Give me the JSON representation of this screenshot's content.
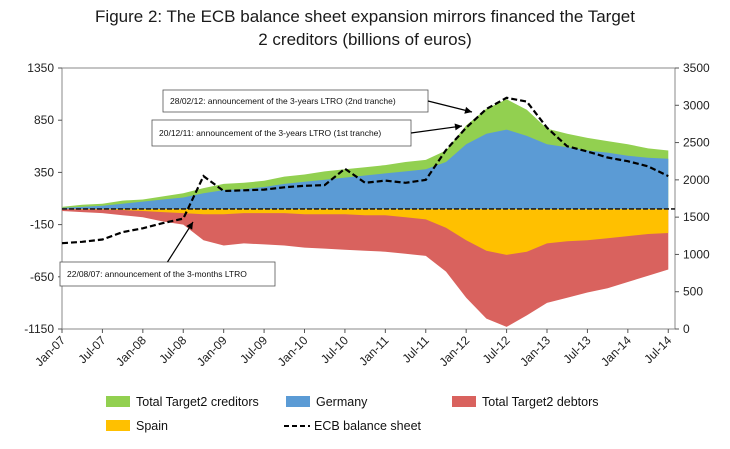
{
  "title_line1": "Figure 2: The ECB balance sheet expansion mirrors financed the Target",
  "title_line2": "2 creditors (billions of euros)",
  "chart_data": {
    "type": "area",
    "x": [
      "2007-01",
      "2007-04",
      "2007-07",
      "2007-10",
      "2008-01",
      "2008-04",
      "2008-07",
      "2008-10",
      "2009-01",
      "2009-04",
      "2009-07",
      "2009-10",
      "2010-01",
      "2010-04",
      "2010-07",
      "2010-10",
      "2011-01",
      "2011-04",
      "2011-07",
      "2011-10",
      "2012-01",
      "2012-04",
      "2012-07",
      "2012-10",
      "2013-01",
      "2013-04",
      "2013-07",
      "2013-10",
      "2014-01",
      "2014-04",
      "2014-07"
    ],
    "x_tick_labels": [
      "Jan-07",
      "Jul-07",
      "Jan-08",
      "Jul-08",
      "Jan-09",
      "Jul-09",
      "Jan-10",
      "Jul-10",
      "Jan-11",
      "Jul-11",
      "Jan-12",
      "Jul-12",
      "Jan-13",
      "Jul-13",
      "Jan-14",
      "Jul-14"
    ],
    "y_left": {
      "range": [
        -1150,
        1350
      ],
      "ticks": [
        1350,
        850,
        350,
        -150,
        -650,
        -1150
      ]
    },
    "y_right": {
      "range": [
        0,
        3500
      ],
      "ticks": [
        3500,
        3000,
        2500,
        2000,
        1500,
        1000,
        500,
        0
      ]
    },
    "series": [
      {
        "name": "Total Target2 creditors",
        "axis": "left",
        "color": "#92d050",
        "values": [
          20,
          40,
          50,
          80,
          90,
          120,
          150,
          200,
          240,
          250,
          270,
          310,
          330,
          360,
          380,
          400,
          420,
          450,
          470,
          560,
          800,
          960,
          1050,
          950,
          770,
          720,
          680,
          650,
          620,
          580,
          560
        ]
      },
      {
        "name": "Germany",
        "axis": "left",
        "color": "#5b9bd5",
        "values": [
          10,
          20,
          30,
          50,
          70,
          90,
          110,
          150,
          180,
          190,
          210,
          240,
          260,
          280,
          300,
          320,
          340,
          360,
          380,
          450,
          620,
          720,
          760,
          700,
          620,
          590,
          560,
          540,
          510,
          490,
          480
        ]
      },
      {
        "name": "Total Target2 debtors",
        "axis": "left",
        "color": "#d9625e",
        "values": [
          -20,
          -30,
          -40,
          -60,
          -80,
          -120,
          -150,
          -300,
          -350,
          -330,
          -340,
          -350,
          -370,
          -380,
          -390,
          -400,
          -410,
          -430,
          -450,
          -600,
          -850,
          -1050,
          -1130,
          -1020,
          -900,
          -850,
          -800,
          -760,
          -700,
          -640,
          -580
        ]
      },
      {
        "name": "Spain",
        "axis": "left",
        "color": "#ffc000",
        "values": [
          0,
          -5,
          -5,
          -10,
          -20,
          -30,
          -40,
          -50,
          -50,
          -40,
          -40,
          -40,
          -50,
          -50,
          -50,
          -60,
          -60,
          -80,
          -100,
          -180,
          -300,
          -400,
          -440,
          -410,
          -330,
          -310,
          -300,
          -280,
          -260,
          -240,
          -230
        ]
      },
      {
        "name": "ECB balance sheet",
        "axis": "right",
        "color": "#000000",
        "values": [
          1150,
          1170,
          1200,
          1300,
          1350,
          1420,
          1480,
          2050,
          1850,
          1860,
          1870,
          1900,
          1920,
          1930,
          2150,
          1960,
          1990,
          1960,
          2000,
          2400,
          2700,
          2950,
          3100,
          3050,
          2700,
          2450,
          2380,
          2300,
          2250,
          2180,
          2050
        ]
      }
    ],
    "legend": [
      "Total Target2 creditors",
      "Germany",
      "Total Target2 debtors",
      "Spain",
      "ECB balance sheet"
    ],
    "legend_position": "bottom",
    "annotations": [
      {
        "text": "28/02/12: announcement of the 3-years LTRO (2nd tranche)",
        "target_x": "2012-03",
        "target_series": "ECB balance sheet"
      },
      {
        "text": "20/12/11: announcement of the 3-years LTRO (1st tranche)",
        "target_x": "2011-12",
        "target_series": "ECB balance sheet"
      },
      {
        "text": "22/08/07: announcement of the 3-months LTRO",
        "target_x": "2008-08",
        "target_series": "ECB balance sheet"
      }
    ]
  }
}
